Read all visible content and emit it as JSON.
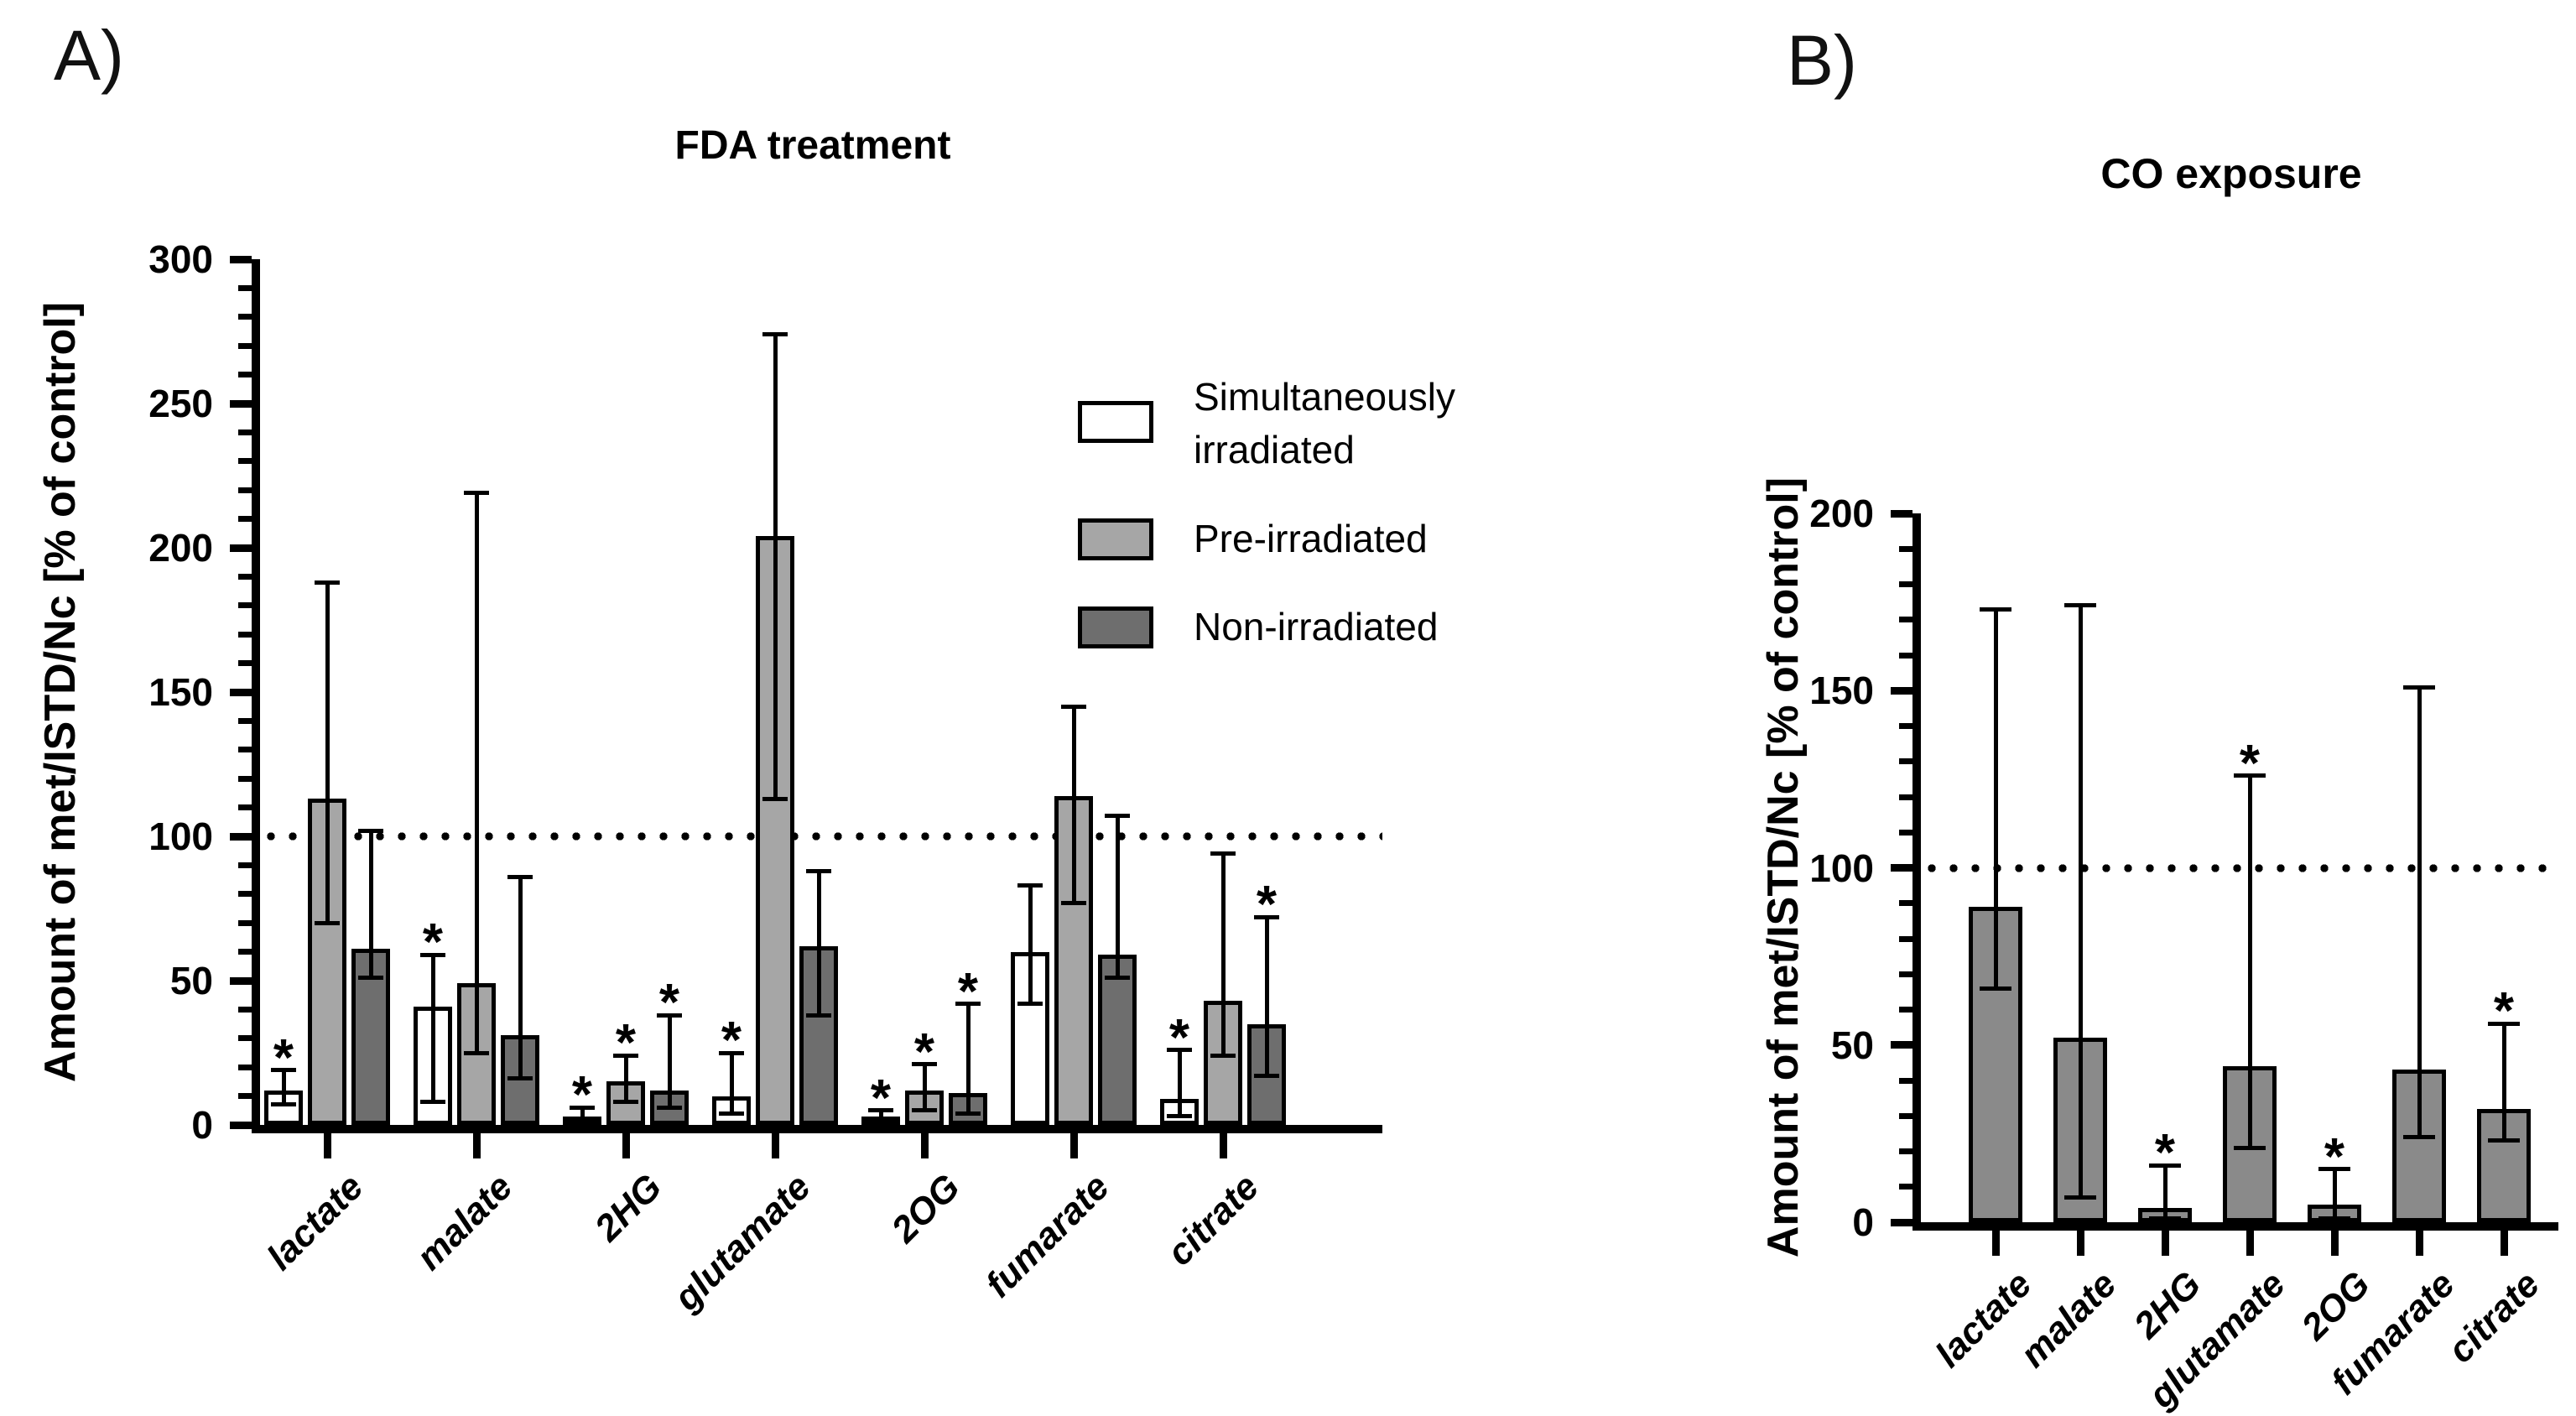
{
  "chart_data": [
    {
      "id": "A",
      "panel_label": "A)",
      "type": "bar",
      "title": "FDA treatment",
      "ylabel": "Amount of met/ISTD/Nc  [% of control]",
      "ylim": [
        0,
        300
      ],
      "ytick_step": 50,
      "yminor_step": 10,
      "reference_line": 100,
      "grid": false,
      "categories": [
        "lactate",
        "malate",
        "2HG",
        "glutamate",
        "2OG",
        "fumarate",
        "citrate"
      ],
      "series": [
        {
          "name": "Simultaneously irradiated",
          "color": "#ffffff",
          "values": [
            12,
            41,
            3,
            10,
            2,
            60,
            9
          ],
          "err_low": [
            7,
            8,
            1,
            4,
            1,
            42,
            3
          ],
          "err_high": [
            19,
            59,
            6,
            25,
            5,
            83,
            26
          ],
          "significant": [
            true,
            true,
            true,
            true,
            true,
            false,
            true
          ]
        },
        {
          "name": "Pre-irradiated",
          "color": "#a6a6a6",
          "values": [
            113,
            49,
            15,
            204,
            12,
            114,
            43
          ],
          "err_low": [
            70,
            25,
            8,
            113,
            5,
            77,
            24
          ],
          "err_high": [
            188,
            219,
            24,
            274,
            21,
            145,
            94
          ],
          "significant": [
            false,
            false,
            true,
            false,
            true,
            false,
            false
          ]
        },
        {
          "name": "Non-irradiated",
          "color": "#6e6e6e",
          "values": [
            61,
            31,
            12,
            62,
            11,
            59,
            35
          ],
          "err_low": [
            51,
            16,
            6,
            38,
            4,
            51,
            17
          ],
          "err_high": [
            102,
            86,
            38,
            88,
            42,
            107,
            72
          ],
          "significant": [
            false,
            false,
            true,
            false,
            true,
            false,
            true
          ]
        }
      ]
    },
    {
      "id": "B",
      "panel_label": "B)",
      "type": "bar",
      "title": "CO exposure",
      "ylabel": "Amount of met/ISTD/Nc  [% of control]",
      "ylim": [
        0,
        200
      ],
      "ytick_step": 50,
      "yminor_step": 10,
      "reference_line": 100,
      "grid": false,
      "categories": [
        "lactate",
        "malate",
        "2HG",
        "glutamate",
        "2OG",
        "fumarate",
        "citrate"
      ],
      "series": [
        {
          "color": "#8a8a8a",
          "values": [
            89,
            52,
            4,
            44,
            5,
            43,
            32
          ],
          "err_low": [
            66,
            7,
            1,
            21,
            1,
            24,
            23
          ],
          "err_high": [
            173,
            174,
            16,
            126,
            15,
            151,
            56
          ],
          "significant": [
            false,
            false,
            true,
            true,
            true,
            false,
            true
          ]
        }
      ]
    }
  ],
  "legend": {
    "items": [
      {
        "label": "Simultaneously irradiated",
        "color": "#ffffff"
      },
      {
        "label": "Pre-irradiated",
        "color": "#a6a6a6"
      },
      {
        "label": "Non-irradiated",
        "color": "#6e6e6e"
      }
    ]
  },
  "significance_marker": "*"
}
